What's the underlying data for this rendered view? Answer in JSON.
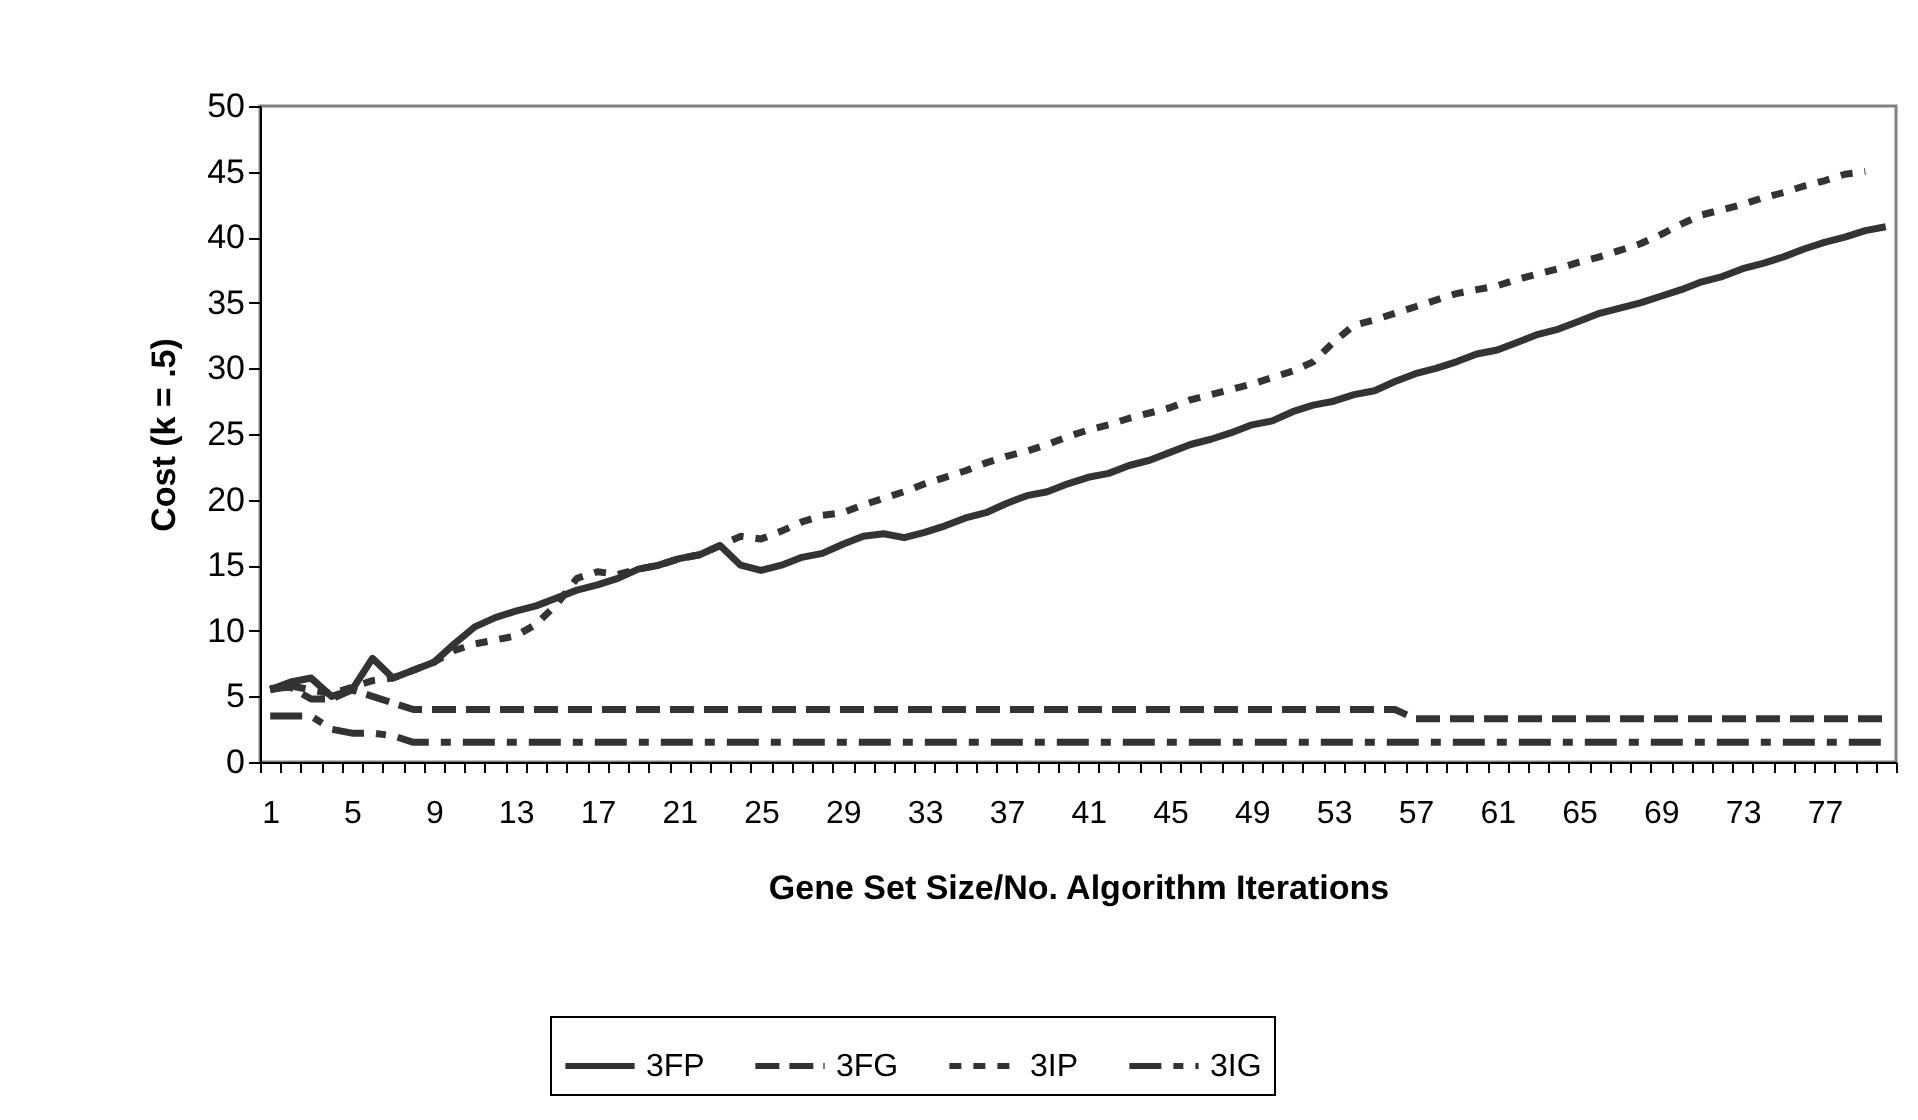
{
  "chart_data": {
    "type": "line",
    "xlabel": "Gene Set Size/No. Algorithm Iterations",
    "ylabel": "Cost (k = .5)",
    "categories": [
      "1",
      null,
      null,
      null,
      "5",
      null,
      null,
      null,
      "9",
      null,
      null,
      null,
      "13",
      null,
      null,
      null,
      "17",
      null,
      null,
      null,
      "21",
      null,
      null,
      null,
      "25",
      null,
      null,
      null,
      "29",
      null,
      null,
      null,
      "33",
      null,
      null,
      null,
      "37",
      null,
      null,
      null,
      "41",
      null,
      null,
      null,
      "45",
      null,
      null,
      null,
      "49",
      null,
      null,
      null,
      "53",
      null,
      null,
      null,
      "57",
      null,
      null,
      null,
      "61",
      null,
      null,
      null,
      "65",
      null,
      null,
      null,
      "69",
      null,
      null,
      null,
      "73",
      null,
      null,
      null,
      "77",
      null,
      null,
      null
    ],
    "ylim": [
      0,
      50
    ],
    "yticks": [
      0,
      5,
      10,
      15,
      20,
      25,
      30,
      35,
      40,
      45,
      50
    ],
    "legend": "bottom",
    "series": [
      {
        "name": "3FP",
        "color": "#333333",
        "line_style": "solid",
        "values": [
          5.5,
          6.1,
          6.4,
          5.0,
          5.5,
          7.9,
          6.4,
          7.0,
          7.6,
          9.0,
          10.3,
          11.0,
          11.5,
          11.9,
          12.5,
          13.1,
          13.5,
          14.0,
          14.7,
          15.0,
          15.5,
          15.8,
          16.5,
          15.0,
          14.6,
          15.0,
          15.6,
          15.9,
          16.6,
          17.2,
          17.4,
          17.1,
          17.5,
          18.0,
          18.6,
          19.0,
          19.7,
          20.3,
          20.6,
          21.2,
          21.7,
          22.0,
          22.6,
          23.0,
          23.6,
          24.2,
          24.6,
          25.1,
          25.7,
          26.0,
          26.7,
          27.2,
          27.5,
          28.0,
          28.3,
          29.0,
          29.6,
          30.0,
          30.5,
          31.1,
          31.4,
          32.0,
          32.6,
          33.0,
          33.6,
          34.2,
          34.6,
          35.0,
          35.5,
          36.0,
          36.6,
          37.0,
          37.6,
          38.0,
          38.5,
          39.1,
          39.6,
          40.0,
          40.5,
          40.8
        ]
      },
      {
        "name": "3FG",
        "color": "#333333",
        "line_style": "dashed",
        "values": [
          5.6,
          5.7,
          4.8,
          4.8,
          5.5,
          5.0,
          4.5,
          4.0,
          4.0,
          4.0,
          4.0,
          4.0,
          4.0,
          4.0,
          4.0,
          4.0,
          4.0,
          4.0,
          4.0,
          4.0,
          4.0,
          4.0,
          4.0,
          4.0,
          4.0,
          4.0,
          4.0,
          4.0,
          4.0,
          4.0,
          4.0,
          4.0,
          4.0,
          4.0,
          4.0,
          4.0,
          4.0,
          4.0,
          4.0,
          4.0,
          4.0,
          4.0,
          4.0,
          4.0,
          4.0,
          4.0,
          4.0,
          4.0,
          4.0,
          4.0,
          4.0,
          4.0,
          4.0,
          4.0,
          4.0,
          4.0,
          3.3,
          3.3,
          3.3,
          3.3,
          3.3,
          3.3,
          3.3,
          3.3,
          3.3,
          3.3,
          3.3,
          3.3,
          3.3,
          3.3,
          3.3,
          3.3,
          3.3,
          3.3,
          3.3,
          3.3,
          3.3,
          3.3,
          3.3,
          3.3
        ]
      },
      {
        "name": "3IP",
        "color": "#333333",
        "line_style": "dotted",
        "values": [
          5.5,
          5.8,
          5.5,
          5.2,
          5.7,
          6.2,
          6.4,
          7.0,
          7.6,
          8.5,
          9.0,
          9.3,
          9.6,
          10.5,
          12.0,
          14.0,
          14.5,
          14.3,
          14.7,
          15.0,
          15.5,
          15.8,
          16.5,
          17.2,
          17.0,
          17.6,
          18.3,
          18.8,
          19.0,
          19.6,
          20.1,
          20.6,
          21.2,
          21.7,
          22.2,
          22.8,
          23.3,
          23.7,
          24.2,
          24.8,
          25.3,
          25.7,
          26.2,
          26.6,
          27.0,
          27.6,
          28.0,
          28.4,
          28.8,
          29.3,
          29.8,
          30.5,
          32.0,
          33.3,
          33.7,
          34.2,
          34.7,
          35.2,
          35.7,
          36.0,
          36.3,
          36.8,
          37.2,
          37.6,
          38.1,
          38.5,
          39.0,
          39.5,
          40.2,
          41.0,
          41.7,
          42.1,
          42.5,
          43.0,
          43.4,
          43.9,
          44.3,
          44.8,
          45.0,
          null
        ]
      },
      {
        "name": "3IG",
        "color": "#333333",
        "line_style": "dashdot",
        "values": [
          3.5,
          3.5,
          3.5,
          2.5,
          2.2,
          2.2,
          2.0,
          1.5,
          1.5,
          1.5,
          1.5,
          1.5,
          1.5,
          1.5,
          1.5,
          1.5,
          1.5,
          1.5,
          1.5,
          1.5,
          1.5,
          1.5,
          1.5,
          1.5,
          1.5,
          1.5,
          1.5,
          1.5,
          1.5,
          1.5,
          1.5,
          1.5,
          1.5,
          1.5,
          1.5,
          1.5,
          1.5,
          1.5,
          1.5,
          1.5,
          1.5,
          1.5,
          1.5,
          1.5,
          1.5,
          1.5,
          1.5,
          1.5,
          1.5,
          1.5,
          1.5,
          1.5,
          1.5,
          1.5,
          1.5,
          1.5,
          1.5,
          1.5,
          1.5,
          1.5,
          1.5,
          1.5,
          1.5,
          1.5,
          1.5,
          1.5,
          1.5,
          1.5,
          1.5,
          1.5,
          1.5,
          1.5,
          1.5,
          1.5,
          1.5,
          1.5,
          1.5,
          1.5,
          1.5,
          1.5
        ]
      }
    ]
  }
}
